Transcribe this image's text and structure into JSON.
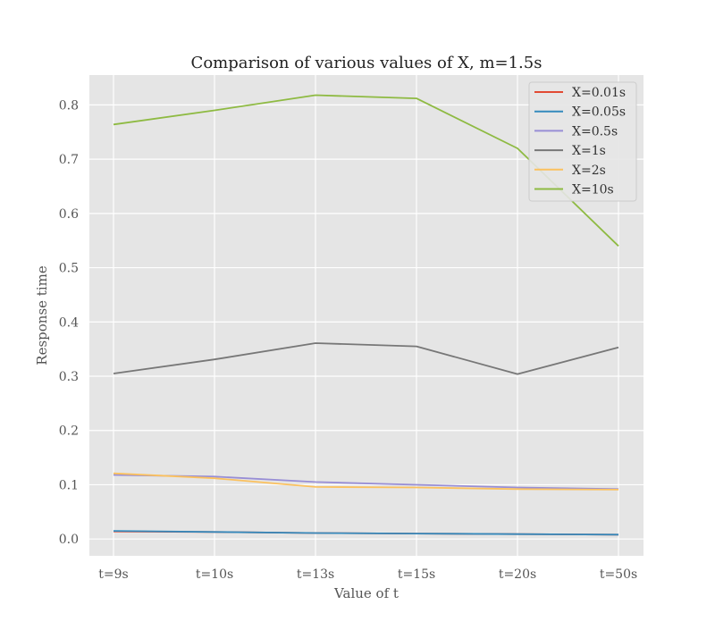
{
  "chart_data": {
    "type": "line",
    "title": "Comparison of various values of X, m=1.5s",
    "xlabel": "Value of t",
    "ylabel": "Response time",
    "categories": [
      "t=9s",
      "t=10s",
      "t=13s",
      "t=15s",
      "t=20s",
      "t=50s"
    ],
    "ylim": [
      -0.031,
      0.855
    ],
    "yticks": [
      0.0,
      0.1,
      0.2,
      0.3,
      0.4,
      0.5,
      0.6,
      0.7,
      0.8
    ],
    "ytick_labels": [
      "0.0",
      "0.1",
      "0.2",
      "0.3",
      "0.4",
      "0.5",
      "0.6",
      "0.7",
      "0.8"
    ],
    "grid": true,
    "legend_position": "top-right",
    "background": "#e5e5e5",
    "series": [
      {
        "name": "X=0.01s",
        "color": "#E24A33",
        "values": [
          0.014,
          0.013,
          0.011,
          0.01,
          0.009,
          0.008
        ]
      },
      {
        "name": "X=0.05s",
        "color": "#348ABD",
        "values": [
          0.015,
          0.013,
          0.011,
          0.01,
          0.009,
          0.008
        ]
      },
      {
        "name": "X=0.5s",
        "color": "#988ED5",
        "values": [
          0.118,
          0.115,
          0.105,
          0.1,
          0.095,
          0.092
        ]
      },
      {
        "name": "X=1s",
        "color": "#777777",
        "values": [
          0.305,
          0.331,
          0.361,
          0.355,
          0.304,
          0.353
        ]
      },
      {
        "name": "X=2s",
        "color": "#FBC15E",
        "values": [
          0.121,
          0.112,
          0.096,
          0.095,
          0.092,
          0.091
        ]
      },
      {
        "name": "X=10s",
        "color": "#8EBA42",
        "values": [
          0.764,
          0.79,
          0.818,
          0.812,
          0.72,
          0.54
        ]
      }
    ]
  }
}
